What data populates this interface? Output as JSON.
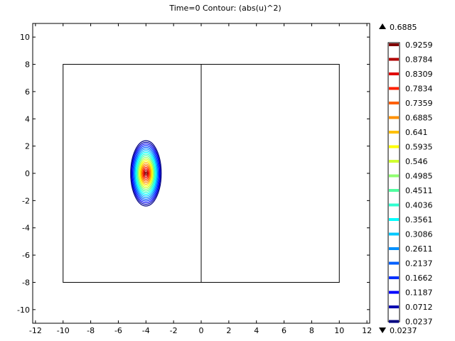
{
  "chart_data": {
    "type": "contour",
    "title": "Time=0   Contour: (abs(u)^2)",
    "xlim": [
      -12.2,
      12.2
    ],
    "ylim": [
      -11.0,
      11.0
    ],
    "x_ticks": [
      -12,
      -10,
      -8,
      -6,
      -4,
      -2,
      0,
      2,
      4,
      6,
      8,
      10,
      12
    ],
    "y_ticks": [
      -10,
      -8,
      -6,
      -4,
      -2,
      0,
      2,
      4,
      6,
      8,
      10
    ],
    "grid": false,
    "geometry": {
      "outer_rect": {
        "x0": -10,
        "x1": 10,
        "y0": -8,
        "y1": 8
      },
      "divider_x": 0
    },
    "peak": {
      "x": -4,
      "y": 0
    },
    "max_label": "0.6885",
    "min_label": "0.0237",
    "levels": [
      {
        "value": "0.9259",
        "color": "#800000"
      },
      {
        "value": "0.8784",
        "color": "#b00000"
      },
      {
        "value": "0.8309",
        "color": "#e00000"
      },
      {
        "value": "0.7834",
        "color": "#ff2000"
      },
      {
        "value": "0.7359",
        "color": "#ff6000"
      },
      {
        "value": "0.6885",
        "color": "#ff9000"
      },
      {
        "value": "0.641",
        "color": "#ffc000"
      },
      {
        "value": "0.5935",
        "color": "#ffff00"
      },
      {
        "value": "0.546",
        "color": "#d0ff30"
      },
      {
        "value": "0.4985",
        "color": "#90ff70"
      },
      {
        "value": "0.4511",
        "color": "#50ffa0"
      },
      {
        "value": "0.4036",
        "color": "#30ffd0"
      },
      {
        "value": "0.3561",
        "color": "#00ffff"
      },
      {
        "value": "0.3086",
        "color": "#00c8ff"
      },
      {
        "value": "0.2611",
        "color": "#0090ff"
      },
      {
        "value": "0.2137",
        "color": "#0060ff"
      },
      {
        "value": "0.1662",
        "color": "#0030ff"
      },
      {
        "value": "0.1187",
        "color": "#0000ff"
      },
      {
        "value": "0.0712",
        "color": "#0000b0"
      },
      {
        "value": "0.0237",
        "color": "#000080"
      }
    ]
  }
}
